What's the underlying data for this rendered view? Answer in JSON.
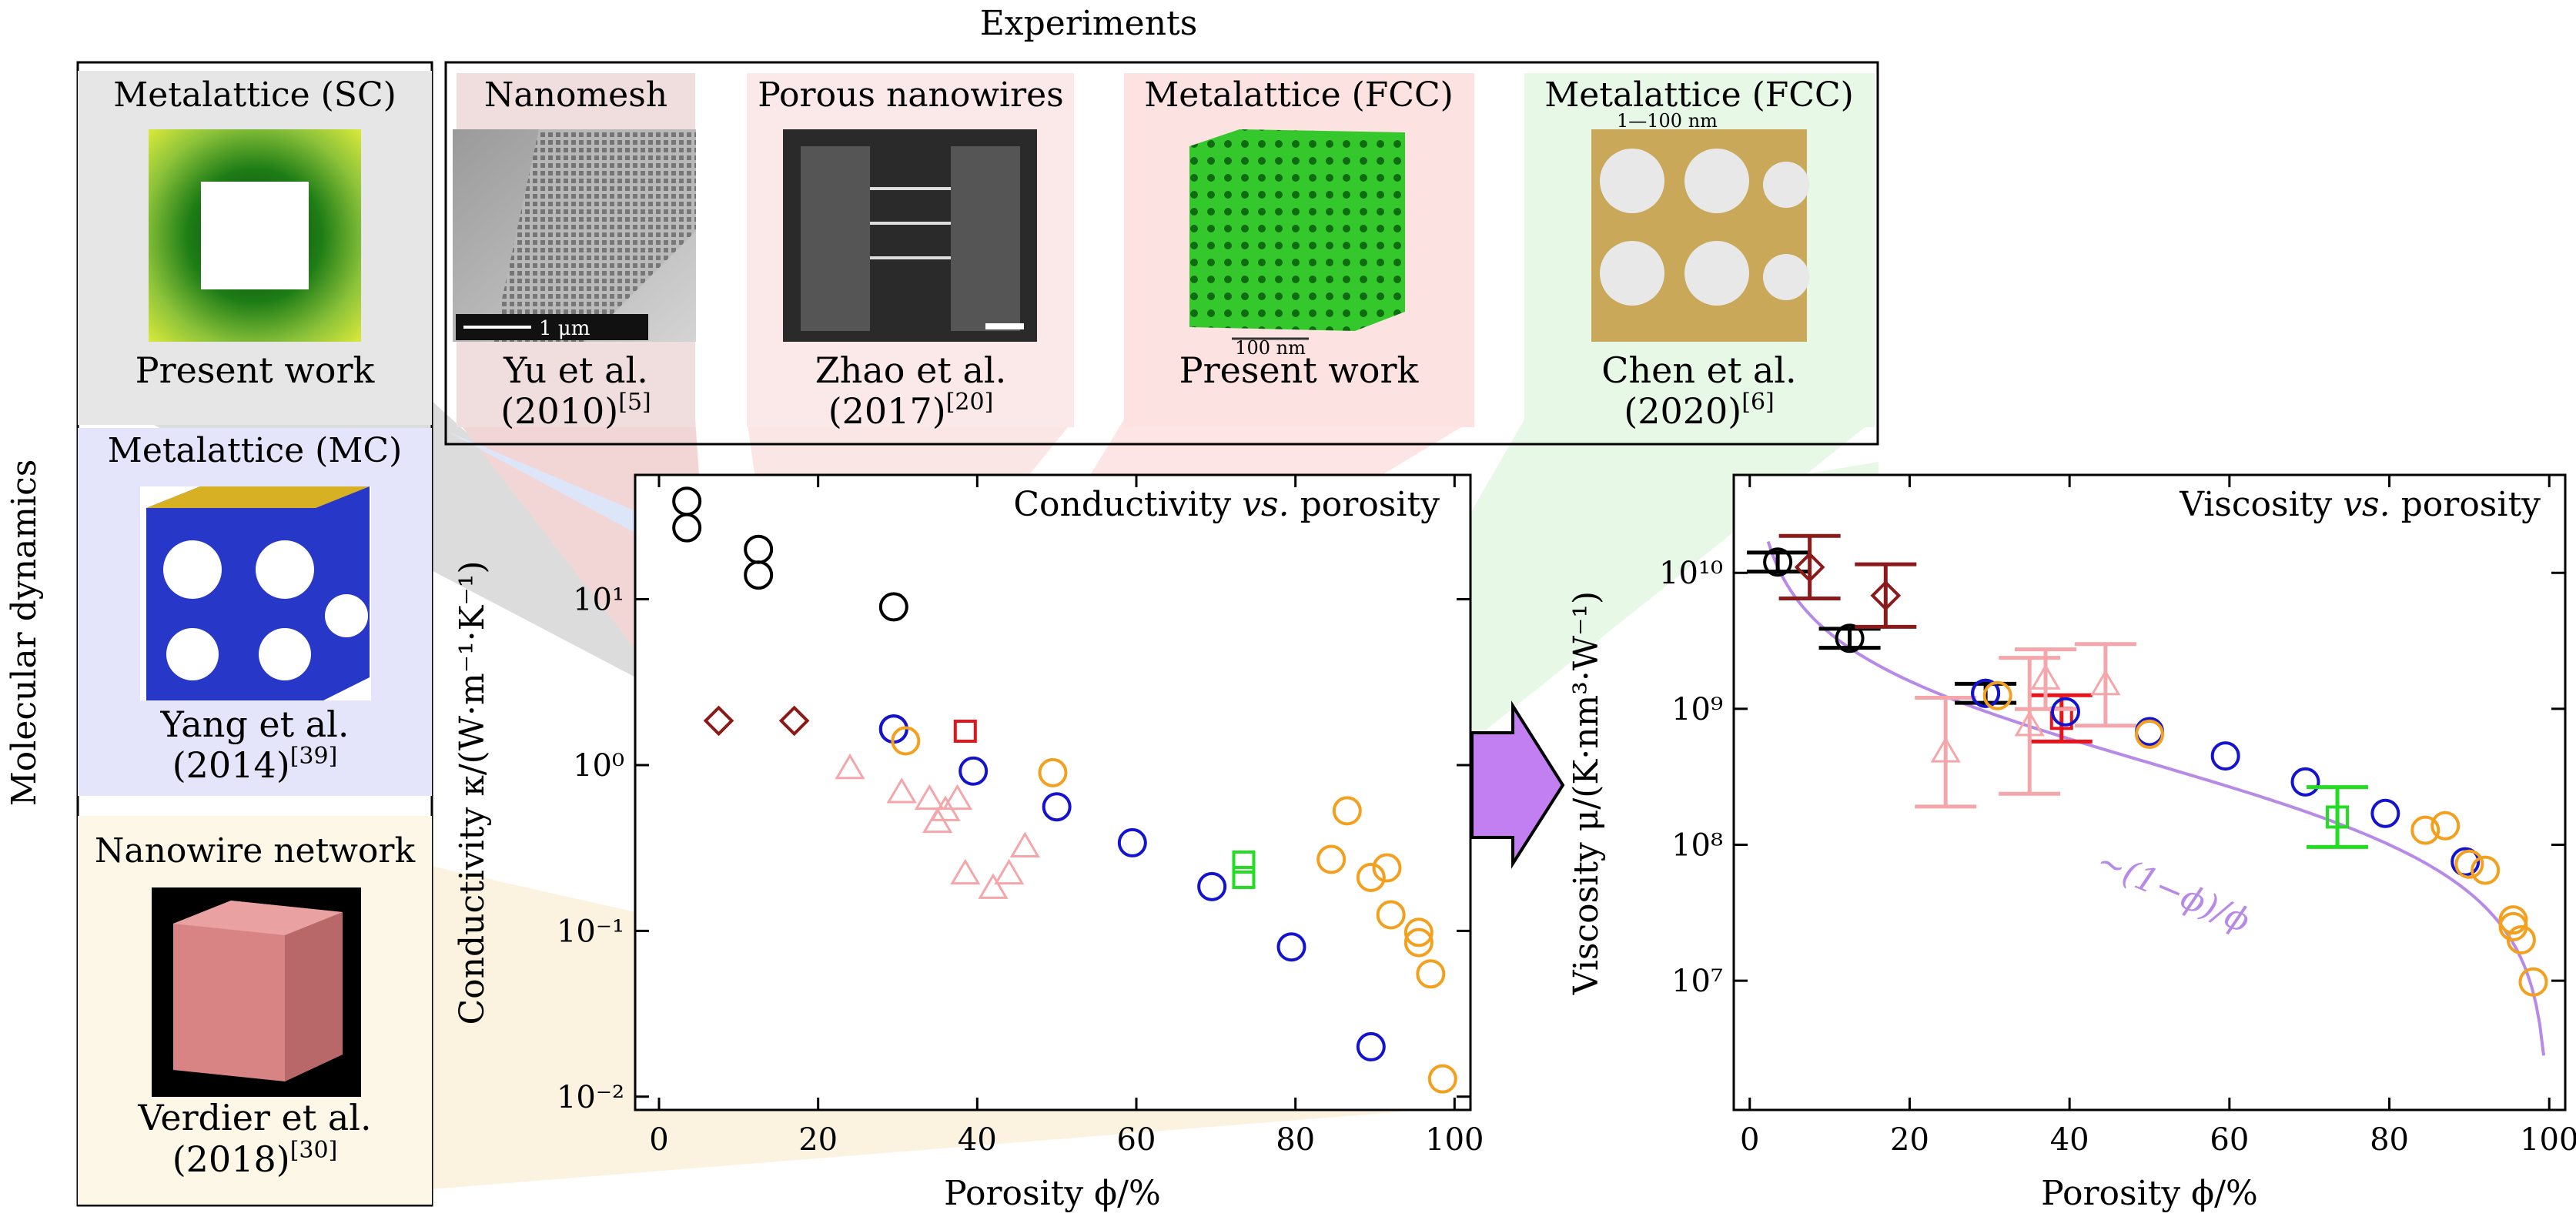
{
  "experiments_label": "Experiments",
  "md_label": "Molecular dynamics",
  "md_panels": [
    {
      "title": "Metalattice (SC)",
      "caption": "Present work",
      "ref": ""
    },
    {
      "title": "Metalattice (MC)",
      "caption": "Yang et al.",
      "caption2": "(2014)",
      "ref": "[39]"
    },
    {
      "title": "Nanowire network",
      "caption": "Verdier et al.",
      "caption2": "(2018)",
      "ref": "[30]"
    }
  ],
  "exp_panels": [
    {
      "title": "Nanomesh",
      "caption": "Yu et al.",
      "caption2": "(2010)",
      "ref": "[5]",
      "scale": "1 μm"
    },
    {
      "title": "Porous nanowires",
      "caption": "Zhao et al.",
      "caption2": "(2017)",
      "ref": "[20]"
    },
    {
      "title": "Metalattice (FCC)",
      "caption": "Present work",
      "scale": "100 nm"
    },
    {
      "title": "Metalattice (FCC)",
      "caption": "Chen et al.",
      "caption2": "(2020)",
      "ref": "[6]",
      "scale": "1—100 nm"
    }
  ],
  "colors": {
    "black": "#000000",
    "darkred": "#8b1a1a",
    "red": "#e8141c",
    "pink": "#f4a6aa",
    "blue": "#1414d0",
    "orange": "#f2a01e",
    "green": "#22dd22",
    "purple": "#c27ff2",
    "curve": "#b68ae6"
  },
  "chart_data": [
    {
      "type": "scatter",
      "title": "Conductivity vs. porosity",
      "title_main": "Conductivity ",
      "title_vs": "vs.",
      "title_end": " porosity",
      "xlabel": "Porosity ϕ/%",
      "ylabel": "Conductivity κ/(W·m⁻¹·K⁻¹)",
      "x_ticks": [
        "0",
        "20",
        "40",
        "60",
        "80",
        "100"
      ],
      "y_ticks": [
        "10⁻²",
        "10⁻¹",
        "10⁰",
        "10¹"
      ],
      "xlim": [
        -3,
        102
      ],
      "ylim_log10": [
        -2.08,
        1.75
      ],
      "y_scale": "log",
      "series": [
        {
          "color": "black",
          "marker": "circle",
          "points": [
            [
              3.5,
              39
            ],
            [
              3.5,
              27
            ],
            [
              12.5,
              20
            ],
            [
              12.5,
              14
            ],
            [
              29.5,
              9.0
            ],
            [
              29.5,
              1.65
            ]
          ]
        },
        {
          "color": "darkred",
          "marker": "diamond",
          "points": [
            [
              7.5,
              1.85
            ],
            [
              17,
              1.85
            ]
          ]
        },
        {
          "color": "red",
          "marker": "square",
          "points": [
            [
              38.5,
              1.6
            ]
          ]
        },
        {
          "color": "pink",
          "marker": "triangle",
          "points": [
            [
              24,
              0.95
            ],
            [
              30.5,
              0.68
            ],
            [
              34,
              0.62
            ],
            [
              35,
              0.45
            ],
            [
              36,
              0.53
            ],
            [
              37.5,
              0.62
            ],
            [
              38.5,
              0.22
            ],
            [
              42,
              0.18
            ],
            [
              44,
              0.22
            ],
            [
              46,
              0.32
            ]
          ]
        },
        {
          "color": "blue",
          "marker": "circle",
          "points": [
            [
              29.5,
              1.65
            ],
            [
              39.5,
              0.92
            ],
            [
              50,
              0.56
            ],
            [
              59.5,
              0.34
            ],
            [
              69.5,
              0.185
            ],
            [
              79.5,
              0.08
            ],
            [
              89.5,
              0.02
            ]
          ]
        },
        {
          "color": "orange",
          "marker": "circle",
          "points": [
            [
              31,
              1.4
            ],
            [
              49.5,
              0.9
            ],
            [
              86.5,
              0.53
            ],
            [
              84.5,
              0.27
            ],
            [
              91.5,
              0.24
            ],
            [
              89.5,
              0.21
            ],
            [
              92,
              0.125
            ],
            [
              95.5,
              0.098
            ],
            [
              95.5,
              0.085
            ],
            [
              97,
              0.055
            ],
            [
              98.5,
              0.0128
            ]
          ]
        },
        {
          "color": "green",
          "marker": "square",
          "points": [
            [
              73.5,
              0.26
            ],
            [
              73.5,
              0.21
            ]
          ]
        }
      ]
    },
    {
      "type": "scatter",
      "title": "Viscosity vs. porosity",
      "title_main": "Viscosity ",
      "title_vs": "vs.",
      "title_end": " porosity",
      "xlabel": "Porosity ϕ/%",
      "ylabel": "Viscosity μ/(K·nm³·W⁻¹)",
      "x_ticks": [
        "0",
        "20",
        "40",
        "60",
        "80",
        "100"
      ],
      "y_ticks": [
        "10⁷",
        "10⁸",
        "10⁹",
        "10¹⁰"
      ],
      "xlim": [
        -2,
        102
      ],
      "ylim_log10": [
        6.05,
        10.72
      ],
      "y_scale": "log",
      "curve_label": "∼(1−ϕ)/ϕ",
      "curve": {
        "formula": "C*(1-phi)/phi",
        "C": 400000000.0,
        "x_range": [
          2.3,
          99.3
        ]
      },
      "series": [
        {
          "color": "black",
          "marker": "circle",
          "points": [
            [
              3.5,
              12000000000.0,
              0.07
            ],
            [
              12.5,
              3300000000.0,
              0.07
            ],
            [
              29.5,
              1300000000.0,
              0.07
            ]
          ]
        },
        {
          "color": "darkred",
          "marker": "diamond",
          "points": [
            [
              7.5,
              11000000000.0,
              0.23
            ],
            [
              17,
              6800000000.0,
              0.23
            ]
          ]
        },
        {
          "color": "red",
          "marker": "square",
          "points": [
            [
              39,
              850000000.0,
              0.17
            ]
          ]
        },
        {
          "color": "pink",
          "marker": "triangle",
          "points": [
            [
              24.5,
              480000000.0,
              0.4
            ],
            [
              35,
              750000000.0,
              0.5
            ],
            [
              37,
              1650000000.0,
              0.22
            ],
            [
              44.5,
              1500000000.0,
              0.3
            ]
          ]
        },
        {
          "color": "blue",
          "marker": "circle",
          "points": [
            [
              29.5,
              1300000000.0,
              0
            ],
            [
              39.5,
              950000000.0,
              0
            ],
            [
              50,
              680000000.0,
              0
            ],
            [
              59.5,
              450000000.0,
              0
            ],
            [
              69.5,
              290000000.0,
              0
            ],
            [
              79.5,
              170000000.0,
              0
            ],
            [
              89.5,
              75000000.0,
              0
            ]
          ]
        },
        {
          "color": "orange",
          "marker": "circle",
          "points": [
            [
              31,
              1250000000.0,
              0
            ],
            [
              50,
              650000000.0,
              0
            ],
            [
              84.5,
              128000000.0,
              0
            ],
            [
              87,
              138000000.0,
              0
            ],
            [
              90,
              72000000.0,
              0
            ],
            [
              92,
              65000000.0,
              0
            ],
            [
              95.5,
              28000000.0,
              0
            ],
            [
              95.5,
              25000000.0,
              0
            ],
            [
              96.5,
              20000000.0,
              0
            ],
            [
              98,
              9800000.0,
              0
            ]
          ]
        },
        {
          "color": "green",
          "marker": "square",
          "points": [
            [
              73.5,
              160000000.0,
              0.22
            ]
          ]
        }
      ]
    }
  ]
}
